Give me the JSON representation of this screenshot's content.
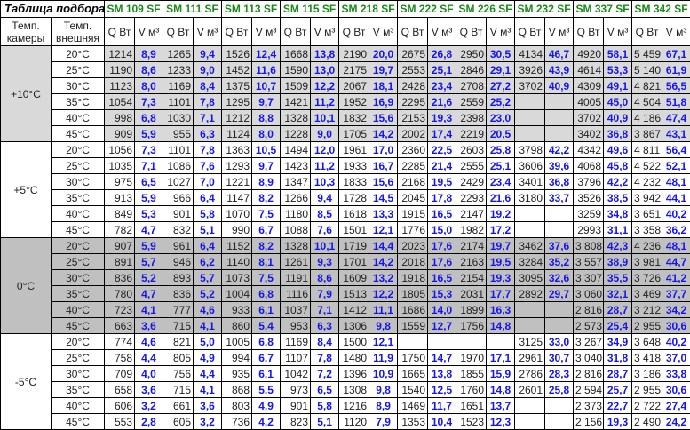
{
  "title": "Таблица подбора",
  "headers": {
    "chamber_temp": "Темп. камеры",
    "outside_temp": "Темп. внешняя",
    "q": "Q Вт",
    "v": "V м³"
  },
  "models": [
    "SM 109 SF",
    "SM 111 SF",
    "SM 113 SF",
    "SM 115 SF",
    "SM 218 SF",
    "SM 222 SF",
    "SM 226 SF",
    "SM 232 SF",
    "SM 337 SF",
    "SM 342 SF"
  ],
  "colors": {
    "model": "#1a8a1a",
    "volume": "#1515ee",
    "block_light": "#d9d9d9",
    "block_dark": "#c0c0c0"
  },
  "blocks": [
    {
      "chamber": "+10°C",
      "shade": "light",
      "rows": [
        {
          "ext": "20°C",
          "cells": [
            [
              "1214",
              "8,9"
            ],
            [
              "1265",
              "9,4"
            ],
            [
              "1526",
              "12,4"
            ],
            [
              "1668",
              "13,8"
            ],
            [
              "2190",
              "20,0"
            ],
            [
              "2675",
              "26,8"
            ],
            [
              "2950",
              "30,5"
            ],
            [
              "4134",
              "46,7"
            ],
            [
              "4920",
              "58,1"
            ],
            [
              "5 459",
              "67,1"
            ]
          ]
        },
        {
          "ext": "25°C",
          "cells": [
            [
              "1190",
              "8,6"
            ],
            [
              "1233",
              "9,0"
            ],
            [
              "1452",
              "11,6"
            ],
            [
              "1590",
              "13,0"
            ],
            [
              "2175",
              "19,7"
            ],
            [
              "2553",
              "25,1"
            ],
            [
              "2846",
              "29,1"
            ],
            [
              "3926",
              "43,9"
            ],
            [
              "4614",
              "53,3"
            ],
            [
              "5 140",
              "61,9"
            ]
          ]
        },
        {
          "ext": "30°C",
          "cells": [
            [
              "1123",
              "8,0"
            ],
            [
              "1169",
              "8,4"
            ],
            [
              "1375",
              "10,7"
            ],
            [
              "1509",
              "12,2"
            ],
            [
              "2067",
              "18,1"
            ],
            [
              "2428",
              "23,4"
            ],
            [
              "2708",
              "27,2"
            ],
            [
              "3702",
              "40,9"
            ],
            [
              "4309",
              "49,1"
            ],
            [
              "4 821",
              "56,5"
            ]
          ]
        },
        {
          "ext": "35°C",
          "cells": [
            [
              "1054",
              "7,3"
            ],
            [
              "1101",
              "7,8"
            ],
            [
              "1295",
              "9,7"
            ],
            [
              "1421",
              "11,2"
            ],
            [
              "1952",
              "16,9"
            ],
            [
              "2295",
              "21,6"
            ],
            [
              "2559",
              "25,2"
            ],
            [
              "",
              ""
            ],
            [
              "4005",
              "45,0"
            ],
            [
              "4 504",
              "51,8"
            ]
          ]
        },
        {
          "ext": "40°C",
          "cells": [
            [
              "998",
              "6,8"
            ],
            [
              "1030",
              "7,1"
            ],
            [
              "1212",
              "8,8"
            ],
            [
              "1328",
              "10,1"
            ],
            [
              "1832",
              "15,6"
            ],
            [
              "2153",
              "19,3"
            ],
            [
              "2398",
              "23,0"
            ],
            [
              "",
              ""
            ],
            [
              "3702",
              "40,9"
            ],
            [
              "4 186",
              "47,4"
            ]
          ]
        },
        {
          "ext": "45°C",
          "cells": [
            [
              "909",
              "5,9"
            ],
            [
              "955",
              "6,3"
            ],
            [
              "1124",
              "8,0"
            ],
            [
              "1228",
              "9,0"
            ],
            [
              "1705",
              "14,2"
            ],
            [
              "2002",
              "17,4"
            ],
            [
              "2219",
              "20,5"
            ],
            [
              "",
              ""
            ],
            [
              "3402",
              "36,8"
            ],
            [
              "3 867",
              "43,1"
            ]
          ]
        }
      ]
    },
    {
      "chamber": "+5°C",
      "shade": "white",
      "rows": [
        {
          "ext": "20°C",
          "cells": [
            [
              "1056",
              "7,3"
            ],
            [
              "1101",
              "7,8"
            ],
            [
              "1363",
              "10,5"
            ],
            [
              "1494",
              "12,0"
            ],
            [
              "1961",
              "17,0"
            ],
            [
              "2360",
              "22,5"
            ],
            [
              "2603",
              "25,8"
            ],
            [
              "3798",
              "42,2"
            ],
            [
              "4342",
              "49,6"
            ],
            [
              "4 811",
              "56,4"
            ]
          ]
        },
        {
          "ext": "25°C",
          "cells": [
            [
              "1035",
              "7,1"
            ],
            [
              "1086",
              "7,6"
            ],
            [
              "1293",
              "9,7"
            ],
            [
              "1423",
              "11,2"
            ],
            [
              "1933",
              "16,7"
            ],
            [
              "2285",
              "21,4"
            ],
            [
              "2555",
              "25,1"
            ],
            [
              "3606",
              "39,6"
            ],
            [
              "4068",
              "45,8"
            ],
            [
              "4 522",
              "52,1"
            ]
          ]
        },
        {
          "ext": "30°C",
          "cells": [
            [
              "975",
              "6,5"
            ],
            [
              "1027",
              "7,0"
            ],
            [
              "1221",
              "8,9"
            ],
            [
              "1347",
              "10,3"
            ],
            [
              "1833",
              "15,6"
            ],
            [
              "2168",
              "19,5"
            ],
            [
              "2429",
              "23,4"
            ],
            [
              "3401",
              "36,8"
            ],
            [
              "3796",
              "42,2"
            ],
            [
              "4 232",
              "48,1"
            ]
          ]
        },
        {
          "ext": "35°C",
          "cells": [
            [
              "913",
              "5,9"
            ],
            [
              "966",
              "6,4"
            ],
            [
              "1147",
              "8,2"
            ],
            [
              "1266",
              "9,4"
            ],
            [
              "1728",
              "14,5"
            ],
            [
              "2045",
              "17,8"
            ],
            [
              "2293",
              "21,6"
            ],
            [
              "3180",
              "33,7"
            ],
            [
              "3526",
              "38,5"
            ],
            [
              "3 942",
              "44,1"
            ]
          ]
        },
        {
          "ext": "40°C",
          "cells": [
            [
              "849",
              "5,3"
            ],
            [
              "901",
              "5,8"
            ],
            [
              "1070",
              "7,5"
            ],
            [
              "1180",
              "8,5"
            ],
            [
              "1618",
              "13,3"
            ],
            [
              "1915",
              "16,5"
            ],
            [
              "2147",
              "19,2"
            ],
            [
              "",
              ""
            ],
            [
              "3259",
              "34,8"
            ],
            [
              "3 651",
              "40,2"
            ]
          ]
        },
        {
          "ext": "45°C",
          "cells": [
            [
              "782",
              "4,7"
            ],
            [
              "832",
              "5,1"
            ],
            [
              "990",
              "6,7"
            ],
            [
              "1088",
              "7,6"
            ],
            [
              "1501",
              "12,1"
            ],
            [
              "1776",
              "15,0"
            ],
            [
              "1982",
              "17,2"
            ],
            [
              "",
              ""
            ],
            [
              "2993",
              "31,1"
            ],
            [
              "3 358",
              "36,2"
            ]
          ]
        }
      ]
    },
    {
      "chamber": "0°C",
      "shade": "dark",
      "rows": [
        {
          "ext": "20°C",
          "cells": [
            [
              "907",
              "5,9"
            ],
            [
              "961",
              "6,4"
            ],
            [
              "1152",
              "8,2"
            ],
            [
              "1328",
              "10,1"
            ],
            [
              "1719",
              "14,4"
            ],
            [
              "2023",
              "17,6"
            ],
            [
              "2174",
              "19,7"
            ],
            [
              "3462",
              "37,6"
            ],
            [
              "3 808",
              "42,3"
            ],
            [
              "4 236",
              "48,1"
            ]
          ]
        },
        {
          "ext": "25°C",
          "cells": [
            [
              "891",
              "5,7"
            ],
            [
              "946",
              "6,2"
            ],
            [
              "1140",
              "8,1"
            ],
            [
              "1261",
              "9,3"
            ],
            [
              "1701",
              "14,2"
            ],
            [
              "2018",
              "17,6"
            ],
            [
              "2163",
              "19,5"
            ],
            [
              "3284",
              "35,2"
            ],
            [
              "3 557",
              "38,9"
            ],
            [
              "3 981",
              "44,7"
            ]
          ]
        },
        {
          "ext": "30°C",
          "cells": [
            [
              "836",
              "5,2"
            ],
            [
              "893",
              "5,7"
            ],
            [
              "1073",
              "7,5"
            ],
            [
              "1191",
              "8,6"
            ],
            [
              "1609",
              "13,2"
            ],
            [
              "1918",
              "16,5"
            ],
            [
              "2154",
              "19,3"
            ],
            [
              "3095",
              "32,6"
            ],
            [
              "3 307",
              "35,5"
            ],
            [
              "3 726",
              "41,2"
            ]
          ]
        },
        {
          "ext": "35°C",
          "cells": [
            [
              "780",
              "4,7"
            ],
            [
              "836",
              "5,2"
            ],
            [
              "1004",
              "6,8"
            ],
            [
              "1116",
              "7,9"
            ],
            [
              "1513",
              "12,2"
            ],
            [
              "1805",
              "15,3"
            ],
            [
              "2031",
              "17,7"
            ],
            [
              "2892",
              "29,7"
            ],
            [
              "3 060",
              "32,1"
            ],
            [
              "3 469",
              "37,7"
            ]
          ]
        },
        {
          "ext": "40°C",
          "cells": [
            [
              "723",
              "4,1"
            ],
            [
              "777",
              "4,6"
            ],
            [
              "933",
              "6,1"
            ],
            [
              "1037",
              "7,1"
            ],
            [
              "1412",
              "11,1"
            ],
            [
              "1686",
              "14,0"
            ],
            [
              "1899",
              "16,3"
            ],
            [
              "",
              ""
            ],
            [
              "2 816",
              "28,7"
            ],
            [
              "3 212",
              "34,2"
            ]
          ]
        },
        {
          "ext": "45°C",
          "cells": [
            [
              "663",
              "3,6"
            ],
            [
              "715",
              "4,1"
            ],
            [
              "860",
              "5,4"
            ],
            [
              "953",
              "6,3"
            ],
            [
              "1306",
              "9,8"
            ],
            [
              "1559",
              "12,7"
            ],
            [
              "1756",
              "14,8"
            ],
            [
              "",
              ""
            ],
            [
              "2 573",
              "25,4"
            ],
            [
              "2 955",
              "30,6"
            ]
          ]
        }
      ]
    },
    {
      "chamber": "-5°C",
      "shade": "white",
      "rows": [
        {
          "ext": "20°C",
          "cells": [
            [
              "774",
              "4,6"
            ],
            [
              "821",
              "5,0"
            ],
            [
              "1005",
              "6,8"
            ],
            [
              "1169",
              "8,4"
            ],
            [
              "1500",
              "12,1"
            ],
            [
              "",
              ""
            ],
            [
              "",
              ""
            ],
            [
              "3125",
              "33,0"
            ],
            [
              "3 267",
              "34,9"
            ],
            [
              "3 648",
              "40,2"
            ]
          ]
        },
        {
          "ext": "25°C",
          "cells": [
            [
              "758",
              "4,4"
            ],
            [
              "805",
              "4,9"
            ],
            [
              "994",
              "6,7"
            ],
            [
              "1107",
              "7,8"
            ],
            [
              "1480",
              "11,9"
            ],
            [
              "1750",
              "14,7"
            ],
            [
              "1970",
              "17,1"
            ],
            [
              "2961",
              "30,7"
            ],
            [
              "3 040",
              "31,8"
            ],
            [
              "3 418",
              "37,0"
            ]
          ]
        },
        {
          "ext": "30°C",
          "cells": [
            [
              "709",
              "4,0"
            ],
            [
              "756",
              "4,4"
            ],
            [
              "935",
              "6,1"
            ],
            [
              "1042",
              "7,2"
            ],
            [
              "1396",
              "10,9"
            ],
            [
              "1665",
              "13,8"
            ],
            [
              "1855",
              "15,9"
            ],
            [
              "2786",
              "28,3"
            ],
            [
              "2 816",
              "28,7"
            ],
            [
              "3 186",
              "33,8"
            ]
          ]
        },
        {
          "ext": "35°C",
          "cells": [
            [
              "658",
              "3,6"
            ],
            [
              "715",
              "4,1"
            ],
            [
              "868",
              "5,5"
            ],
            [
              "973",
              "6,5"
            ],
            [
              "1308",
              "9,8"
            ],
            [
              "1540",
              "12,5"
            ],
            [
              "1760",
              "14,8"
            ],
            [
              "2601",
              "25,8"
            ],
            [
              "2 594",
              "25,7"
            ],
            [
              "2 955",
              "30,6"
            ]
          ]
        },
        {
          "ext": "40°C",
          "cells": [
            [
              "606",
              "3,2"
            ],
            [
              "661",
              "3,6"
            ],
            [
              "803",
              "4,9"
            ],
            [
              "901",
              "5,8"
            ],
            [
              "1216",
              "8,9"
            ],
            [
              "1469",
              "11,7"
            ],
            [
              "1651",
              "13,7"
            ],
            [
              "",
              ""
            ],
            [
              "2 373",
              "22,7"
            ],
            [
              "2 722",
              "27,4"
            ]
          ]
        },
        {
          "ext": "45°C",
          "cells": [
            [
              "553",
              "2,8"
            ],
            [
              "605",
              "3,2"
            ],
            [
              "736",
              "4,2"
            ],
            [
              "823",
              "5,1"
            ],
            [
              "1120",
              "7,9"
            ],
            [
              "1353",
              "10,4"
            ],
            [
              "1523",
              "12,3"
            ],
            [
              "",
              ""
            ],
            [
              "2 156",
              "19,3"
            ],
            [
              "2 490",
              "24,2"
            ]
          ]
        }
      ]
    }
  ]
}
